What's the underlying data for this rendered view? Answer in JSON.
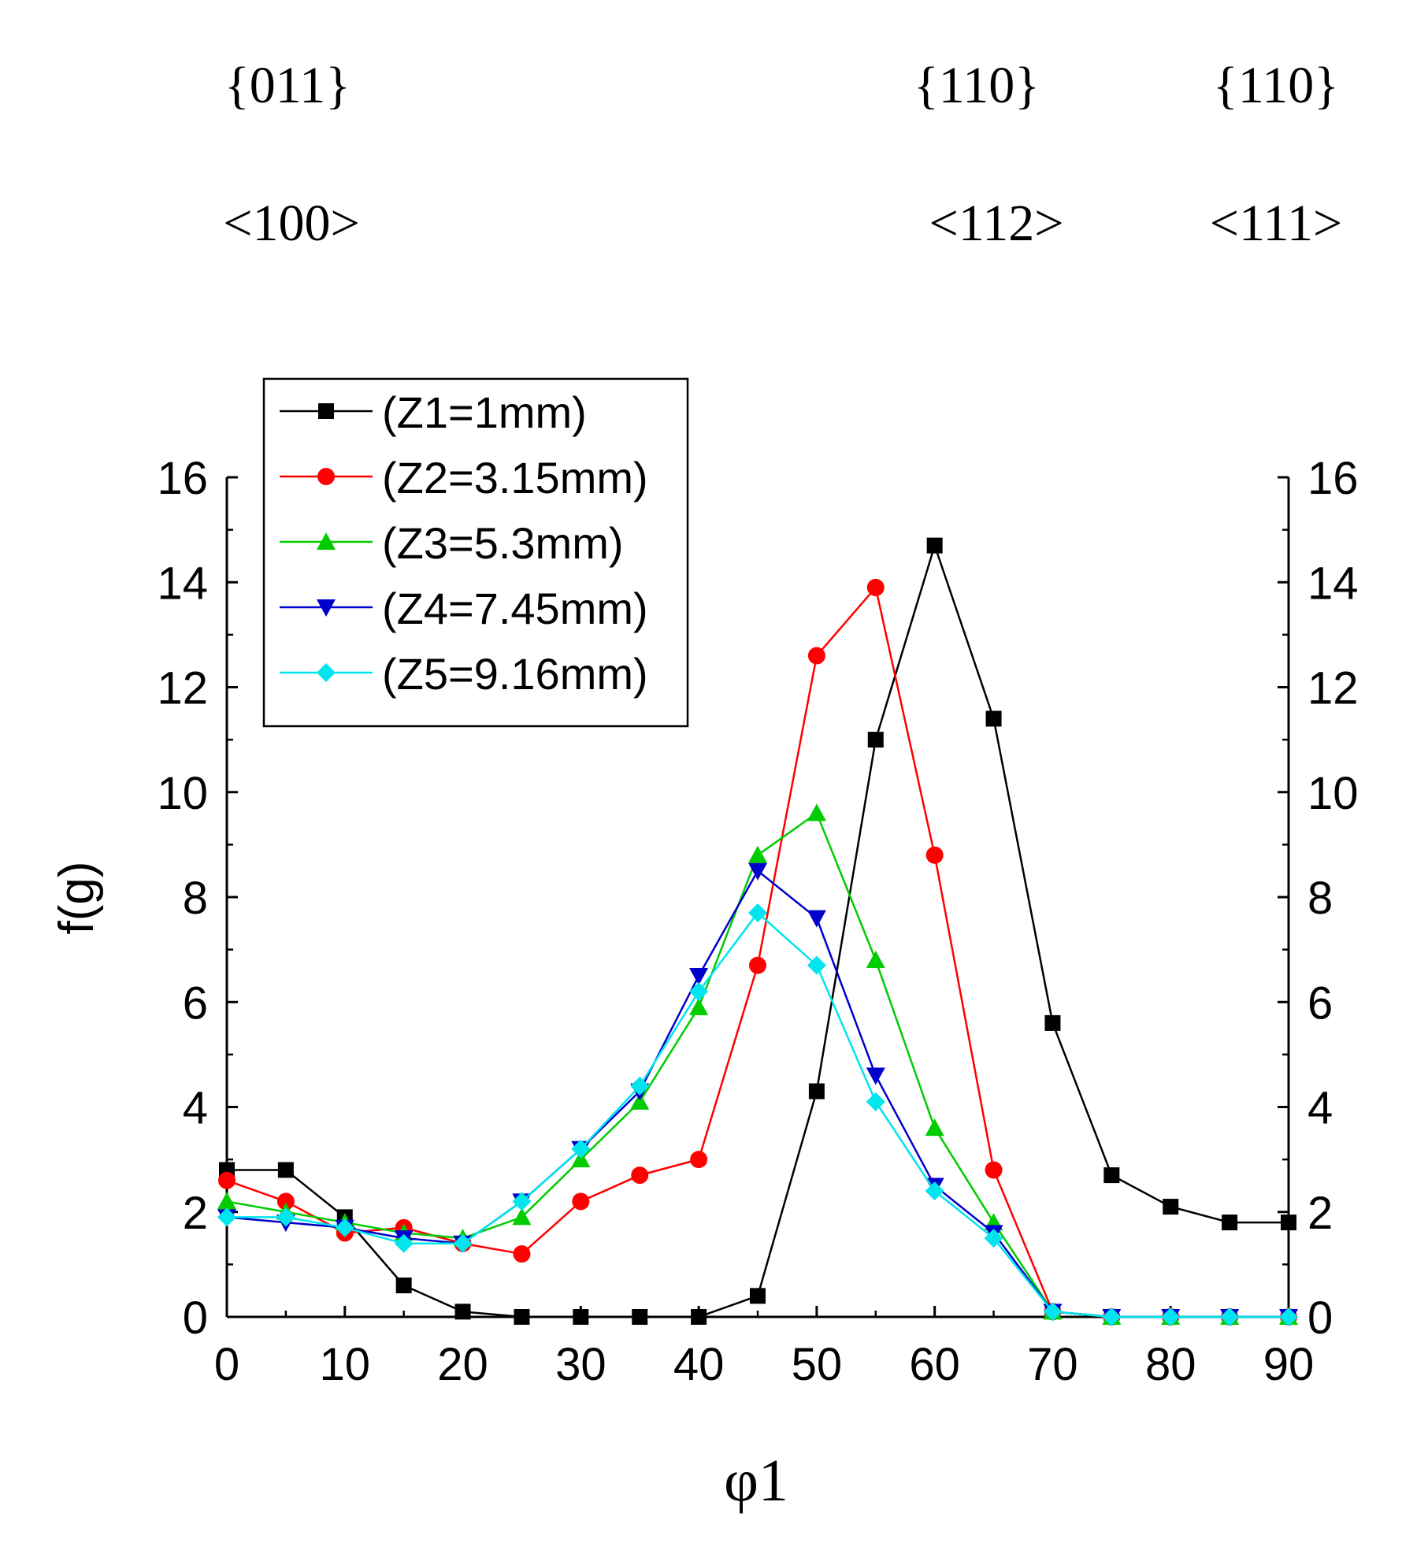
{
  "annotations": [
    {
      "plane": "{011}",
      "direction": "<100>"
    },
    {
      "plane": "{110}",
      "direction": "<112>"
    },
    {
      "plane": "{110}",
      "direction": "<111>"
    }
  ],
  "chart_data": {
    "type": "line",
    "title": "",
    "xlabel": "φ1",
    "ylabel": "f(g)",
    "xlim": [
      0,
      90
    ],
    "ylim": [
      0,
      16
    ],
    "xticks": [
      0,
      10,
      20,
      30,
      40,
      50,
      60,
      70,
      80,
      90
    ],
    "yticks": [
      0,
      2,
      4,
      6,
      8,
      10,
      12,
      14,
      16
    ],
    "grid": false,
    "legend_position": "top-left",
    "x": [
      0,
      5,
      10,
      15,
      20,
      25,
      30,
      35,
      40,
      45,
      50,
      55,
      60,
      65,
      70,
      75,
      80,
      85,
      90
    ],
    "series": [
      {
        "name": "(Z1=1mm)",
        "color": "#000000",
        "marker": "square",
        "values": [
          2.8,
          2.8,
          1.9,
          0.6,
          0.1,
          0,
          0,
          0,
          0,
          0.4,
          4.3,
          11.0,
          14.7,
          11.4,
          5.6,
          2.7,
          2.1,
          1.8,
          1.8
        ]
      },
      {
        "name": "(Z2=3.15mm)",
        "color": "#ff0000",
        "marker": "circle",
        "values": [
          2.6,
          2.2,
          1.6,
          1.7,
          1.4,
          1.2,
          2.2,
          2.7,
          3.0,
          6.7,
          12.6,
          13.9,
          8.8,
          2.8,
          0.1,
          0,
          0,
          0,
          0
        ]
      },
      {
        "name": "(Z3=5.3mm)",
        "color": "#00cc00",
        "marker": "triangle-up",
        "values": [
          2.2,
          2.0,
          1.8,
          1.6,
          1.5,
          1.9,
          3.0,
          4.1,
          5.9,
          8.8,
          9.6,
          6.8,
          3.6,
          1.8,
          0.1,
          0,
          0,
          0,
          0
        ]
      },
      {
        "name": "(Z4=7.45mm)",
        "color": "#0000cc",
        "marker": "triangle-down",
        "values": [
          1.9,
          1.8,
          1.7,
          1.5,
          1.4,
          2.2,
          3.2,
          4.3,
          6.5,
          8.5,
          7.6,
          4.6,
          2.5,
          1.6,
          0.1,
          0,
          0,
          0,
          0
        ]
      },
      {
        "name": "(Z5=9.16mm)",
        "color": "#00e5ee",
        "marker": "diamond",
        "values": [
          1.9,
          1.9,
          1.7,
          1.4,
          1.4,
          2.2,
          3.2,
          4.4,
          6.2,
          7.7,
          6.7,
          4.1,
          2.4,
          1.5,
          0.1,
          0,
          0,
          0,
          0
        ]
      }
    ]
  }
}
